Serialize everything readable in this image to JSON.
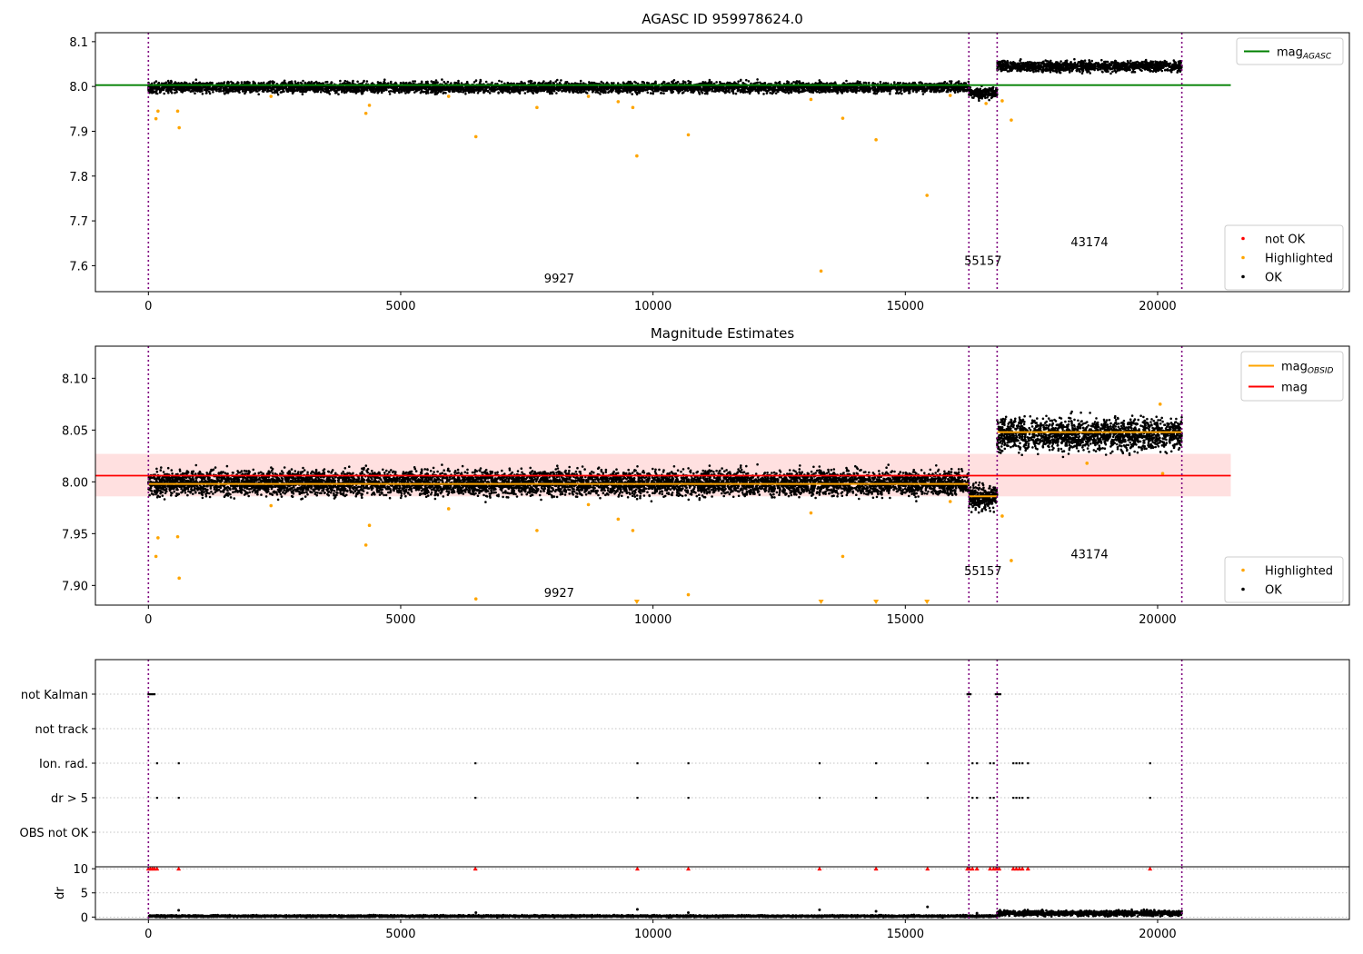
{
  "figure": {
    "title": "AGASC ID 959978624.0"
  },
  "chart_data": [
    {
      "id": "agasc",
      "type": "scatter",
      "title": "AGASC ID 959978624.0",
      "xlim": [
        -1050,
        23800
      ],
      "ylim": [
        7.542,
        8.12
      ],
      "xticks": [
        0,
        5000,
        10000,
        15000,
        20000
      ],
      "yticks": [
        7.6,
        7.7,
        7.8,
        7.9,
        8.0,
        8.1
      ],
      "ytick_decimals": 1,
      "reference_line": {
        "name": "mag_AGASC",
        "value": 8.003,
        "x_range": [
          -1050,
          21450
        ],
        "color": "#008000"
      },
      "legend_top": {
        "placement": "top-right",
        "entries": [
          {
            "label": "mag",
            "subscript": "AGASC",
            "kind": "line",
            "color": "#008000"
          }
        ]
      },
      "legend_bottom": {
        "placement": "bottom-right",
        "entries": [
          {
            "label": "not OK",
            "kind": "dot",
            "color": "#ff0000"
          },
          {
            "label": "Highlighted",
            "kind": "dot",
            "color": "#ffa500"
          },
          {
            "label": "OK",
            "kind": "dot",
            "color": "#000000"
          }
        ]
      },
      "observation_boundaries": [
        0,
        16260,
        16820,
        20480
      ],
      "obsid_labels": [
        {
          "text": "9927",
          "x": 8140,
          "y": 7.562
        },
        {
          "text": "55157",
          "x": 16540,
          "y": 7.602
        },
        {
          "text": "43174",
          "x": 18650,
          "y": 7.643
        }
      ],
      "segments": [
        {
          "x_range": [
            0,
            16260
          ],
          "center": 7.998,
          "band": 0.013
        },
        {
          "x_range": [
            16260,
            16820
          ],
          "center": 7.985,
          "band": 0.013
        },
        {
          "x_range": [
            16820,
            20480
          ],
          "center": 8.045,
          "band": 0.013
        }
      ],
      "highlighted_points": [
        [
          150,
          7.928
        ],
        [
          190,
          7.945
        ],
        [
          580,
          7.945
        ],
        [
          610,
          7.908
        ],
        [
          4310,
          7.94
        ],
        [
          4380,
          7.958
        ],
        [
          6490,
          7.888
        ],
        [
          7700,
          7.953
        ],
        [
          9310,
          7.966
        ],
        [
          9600,
          7.953
        ],
        [
          9680,
          7.845
        ],
        [
          10700,
          7.892
        ],
        [
          13130,
          7.971
        ],
        [
          13330,
          7.588
        ],
        [
          13760,
          7.929
        ],
        [
          14420,
          7.881
        ],
        [
          15430,
          7.757
        ],
        [
          16600,
          7.962
        ],
        [
          16920,
          7.968
        ],
        [
          17100,
          7.925
        ],
        [
          2430,
          7.978
        ],
        [
          5950,
          7.978
        ],
        [
          8720,
          7.978
        ],
        [
          15890,
          7.98
        ]
      ]
    },
    {
      "id": "mag-estimates",
      "type": "scatter",
      "title": "Magnitude Estimates",
      "xlim": [
        -1050,
        23800
      ],
      "ylim": [
        7.881,
        8.131
      ],
      "xticks": [
        0,
        5000,
        10000,
        15000,
        20000
      ],
      "yticks": [
        7.9,
        7.95,
        8.0,
        8.05,
        8.1
      ],
      "ytick_decimals": 2,
      "mean_line": {
        "name": "mag",
        "value": 8.006,
        "x_range": [
          -1050,
          21450
        ],
        "color": "#ff0000"
      },
      "error_band": {
        "low": 7.986,
        "high": 8.027,
        "color": "#ffe0e0"
      },
      "obsid_mag_lines": [
        {
          "x_range": [
            0,
            16260
          ],
          "value": 7.998
        },
        {
          "x_range": [
            16260,
            16820
          ],
          "value": 7.986
        },
        {
          "x_range": [
            16820,
            20480
          ],
          "value": 8.048
        }
      ],
      "legend_top": {
        "placement": "top-right",
        "entries": [
          {
            "label": "mag",
            "subscript": "OBSID",
            "kind": "line",
            "color": "#ffa500"
          },
          {
            "label": "mag",
            "kind": "line",
            "color": "#ff0000"
          }
        ]
      },
      "legend_bottom": {
        "placement": "bottom-right",
        "entries": [
          {
            "label": "Highlighted",
            "kind": "dot",
            "color": "#ffa500"
          },
          {
            "label": "OK",
            "kind": "dot",
            "color": "#000000"
          }
        ]
      },
      "observation_boundaries": [
        0,
        16260,
        16820,
        20480
      ],
      "obsid_labels": [
        {
          "text": "9927",
          "x": 8140,
          "y": 7.889
        },
        {
          "text": "55157",
          "x": 16540,
          "y": 7.91
        },
        {
          "text": "43174",
          "x": 18650,
          "y": 7.926
        }
      ],
      "segments": [
        {
          "x_range": [
            0,
            16260
          ],
          "center": 7.999,
          "band": 0.013
        },
        {
          "x_range": [
            16260,
            16820
          ],
          "center": 7.985,
          "band": 0.013
        },
        {
          "x_range": [
            16820,
            20480
          ],
          "center": 8.046,
          "band": 0.017
        }
      ],
      "highlighted_points": [
        [
          150,
          7.928
        ],
        [
          190,
          7.946
        ],
        [
          580,
          7.947
        ],
        [
          610,
          7.907
        ],
        [
          4310,
          7.939
        ],
        [
          4380,
          7.958
        ],
        [
          6490,
          7.887
        ],
        [
          7700,
          7.953
        ],
        [
          9310,
          7.964
        ],
        [
          9600,
          7.953
        ],
        [
          10700,
          7.891
        ],
        [
          13130,
          7.97
        ],
        [
          13760,
          7.928
        ],
        [
          16920,
          7.967
        ],
        [
          17100,
          7.924
        ],
        [
          2430,
          7.977
        ],
        [
          5950,
          7.974
        ],
        [
          8720,
          7.978
        ],
        [
          15890,
          7.981
        ],
        [
          18600,
          8.018
        ],
        [
          20100,
          8.008
        ],
        [
          20050,
          8.075
        ]
      ],
      "offscale_markers": [
        9680,
        13330,
        14420,
        15430
      ]
    },
    {
      "id": "flags",
      "type": "scatter",
      "xlim": [
        -1050,
        23800
      ],
      "flag_rows": [
        "not Kalman",
        "not track",
        "Ion. rad.",
        "dr > 5",
        "OBS not OK"
      ],
      "observation_boundaries": [
        0,
        16260,
        16820,
        20480
      ],
      "flags": {
        "not Kalman": [
          0,
          30,
          60,
          90,
          120,
          16230,
          16260,
          16290,
          16790,
          16820,
          16850,
          16880
        ],
        "not track": [],
        "Ion. rad.": [
          170,
          600,
          6480,
          9690,
          10700,
          13300,
          14420,
          15440,
          16330,
          16420,
          16680,
          16750,
          17140,
          17200,
          17260,
          17320,
          17430,
          19850
        ],
        "dr > 5": [
          170,
          600,
          6480,
          9690,
          10700,
          13300,
          14420,
          15440,
          16330,
          16420,
          16680,
          16750,
          17140,
          17200,
          17260,
          17320,
          17430,
          19850
        ],
        "OBS not OK": []
      }
    },
    {
      "id": "dr",
      "type": "scatter",
      "xlim": [
        -1050,
        23800
      ],
      "ylim": [
        -0.5,
        10.4
      ],
      "ylabel": "dr",
      "xticks": [
        0,
        5000,
        10000,
        15000,
        20000
      ],
      "yticks": [
        0,
        5,
        10
      ],
      "observation_boundaries": [
        0,
        16260,
        16820,
        20480
      ],
      "capped_points": [
        0,
        40,
        80,
        120,
        170,
        600,
        6480,
        9690,
        10700,
        13300,
        14420,
        15440,
        16230,
        16270,
        16330,
        16420,
        16680,
        16750,
        16800,
        16860,
        17140,
        17200,
        17260,
        17320,
        17430,
        19850
      ],
      "outliers": [
        [
          600,
          1.4
        ],
        [
          6490,
          0.9
        ],
        [
          9690,
          1.6
        ],
        [
          10700,
          0.9
        ],
        [
          13300,
          1.5
        ],
        [
          14420,
          1.2
        ],
        [
          15440,
          2.1
        ],
        [
          16420,
          0.8
        ]
      ],
      "segments": [
        {
          "x_range": [
            0,
            16820
          ],
          "center": 0.2,
          "band": 0.2
        },
        {
          "x_range": [
            16820,
            20480
          ],
          "center": 0.8,
          "band": 0.6
        }
      ]
    }
  ]
}
